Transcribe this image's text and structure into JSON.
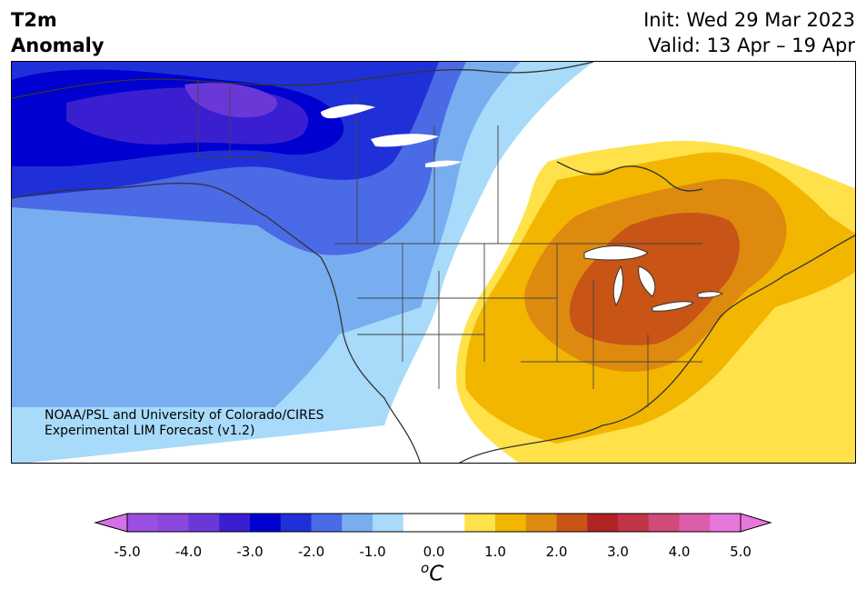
{
  "title": {
    "variable_line1": "T2m",
    "variable_line2": "Anomaly",
    "init": "Init: Wed 29 Mar 2023",
    "valid": "Valid: 13 Apr – 19 Apr"
  },
  "credit": {
    "line1": "NOAA/PSL and University of Colorado/CIRES",
    "line2": "Experimental LIM Forecast (v1.2)"
  },
  "colorbar": {
    "unit_base": "C",
    "unit_sup": "o",
    "ticks": [
      "-5.0",
      "-4.0",
      "-3.0",
      "-2.0",
      "-1.0",
      "0.0",
      "1.0",
      "2.0",
      "3.0",
      "4.0",
      "5.0"
    ],
    "bins": [
      {
        "from": -5.0,
        "to": -4.5,
        "color": "#9b4fe0"
      },
      {
        "from": -4.5,
        "to": -4.0,
        "color": "#8a48dc"
      },
      {
        "from": -4.0,
        "to": -3.5,
        "color": "#6b38d8"
      },
      {
        "from": -3.5,
        "to": -3.0,
        "color": "#3a1fd0"
      },
      {
        "from": -3.0,
        "to": -2.5,
        "color": "#0000d0"
      },
      {
        "from": -2.5,
        "to": -2.0,
        "color": "#2030d8"
      },
      {
        "from": -2.0,
        "to": -1.5,
        "color": "#4a6ae6"
      },
      {
        "from": -1.5,
        "to": -1.0,
        "color": "#78aef0"
      },
      {
        "from": -1.0,
        "to": -0.5,
        "color": "#a8dafa"
      },
      {
        "from": -0.5,
        "to": 0.5,
        "color": "#ffffff"
      },
      {
        "from": 0.5,
        "to": 1.0,
        "color": "#ffe14a"
      },
      {
        "from": 1.0,
        "to": 1.5,
        "color": "#f2b600"
      },
      {
        "from": 1.5,
        "to": 2.0,
        "color": "#de8a0e"
      },
      {
        "from": 2.0,
        "to": 2.5,
        "color": "#c85416"
      },
      {
        "from": 2.5,
        "to": 3.0,
        "color": "#b02424"
      },
      {
        "from": 3.0,
        "to": 3.5,
        "color": "#c23448"
      },
      {
        "from": 3.5,
        "to": 4.0,
        "color": "#d04a7a"
      },
      {
        "from": 4.0,
        "to": 4.5,
        "color": "#dc5eaa"
      },
      {
        "from": 4.5,
        "to": 5.0,
        "color": "#e678dc"
      }
    ],
    "under_color": "#d670e8",
    "over_color": "#e678dc"
  },
  "map": {
    "cold_anomaly_region": "Alaska, western and northwestern Canada, US Pacific Northwest",
    "warm_anomaly_region": "Central and eastern US, Great Lakes, southeastern Canada"
  }
}
